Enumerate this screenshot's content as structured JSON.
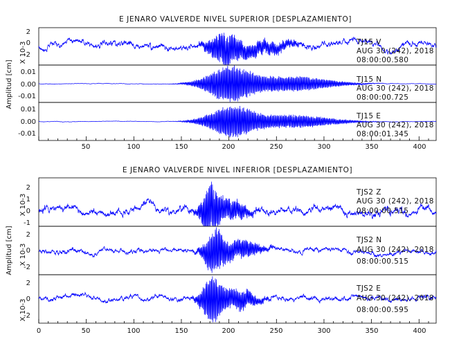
{
  "chart_data": [
    {
      "type": "line",
      "title": "E JENARO VALVERDE NIVEL SUPERIOR [DESPLAZAMIENTO]",
      "ylabel": "Amplitud [cm]",
      "xlim": [
        0,
        418
      ],
      "xticks": [
        "50",
        "100",
        "150",
        "200",
        "250",
        "300",
        "350",
        "400"
      ],
      "line_color": "#0000ff",
      "grid": false,
      "panels": [
        {
          "name": "TJ15  V",
          "date": "AUG 30 (242), 2018",
          "time": "08:00:00.580",
          "yunit": "X 10-3",
          "ylim": [
            -2.3,
            2.3
          ],
          "yticks": [
            "2",
            "0",
            "-2"
          ],
          "baseline": 0.3,
          "noise_amp": 0.55,
          "peak_amp": 1.9,
          "peak_time": 195,
          "peak_width": 18,
          "seed": 11
        },
        {
          "name": "TJ15  N",
          "date": "AUG 30 (242), 2018",
          "time": "08:00:00.725",
          "yunit": "",
          "ylim": [
            -0.015,
            0.015
          ],
          "yticks": [
            "0.01",
            "0.00",
            "-0.01"
          ],
          "baseline": 0,
          "noise_amp": 0.0003,
          "peak_amp": 0.014,
          "peak_time": 200,
          "peak_width": 28,
          "seed": 23
        },
        {
          "name": "TJ15  E",
          "date": "AUG 30 (242), 2018",
          "time": "08:00:01.345",
          "yunit": "",
          "ylim": [
            -0.015,
            0.015
          ],
          "yticks": [
            "0.01",
            "0.00",
            "-0.01"
          ],
          "baseline": 0,
          "noise_amp": 0.0003,
          "peak_amp": 0.012,
          "peak_time": 202,
          "peak_width": 28,
          "seed": 37
        }
      ]
    },
    {
      "type": "line",
      "title": "E JENARO VALVERDE NIVEL INFERIOR [DESPLAZAMIENTO]",
      "ylabel": "Amplitud [cm]",
      "xlim": [
        0,
        418
      ],
      "xticks": [
        "0",
        "50",
        "100",
        "150",
        "200",
        "250",
        "300",
        "350",
        "400"
      ],
      "line_color": "#0000ff",
      "grid": false,
      "panels": [
        {
          "name": "TJS2   Z",
          "date": "AUG 30 (242), 2018",
          "time": "08:00:00.515",
          "yunit": "X 10-3",
          "ylim": [
            -1.3,
            2.7
          ],
          "yticks": [
            "2",
            "1",
            "0",
            "-1"
          ],
          "baseline": 0,
          "noise_amp": 0.45,
          "peak_amp": 2.0,
          "peak_time": 180,
          "peak_width": 10,
          "seed": 51
        },
        {
          "name": "TJS2   N",
          "date": "AUG 30 (242), 2018",
          "time": "08:00:00.515",
          "yunit": "X 10-3",
          "ylim": [
            -3.0,
            3.0
          ],
          "yticks": [
            "2",
            "0",
            "-2"
          ],
          "baseline": 0,
          "noise_amp": 0.45,
          "peak_amp": 2.6,
          "peak_time": 185,
          "peak_width": 12,
          "seed": 67
        },
        {
          "name": "TJS2   E",
          "date": "AUG 30 (242), 2018",
          "time": "08:00:00.595",
          "yunit": "X 10-3",
          "ylim": [
            -3.0,
            3.0
          ],
          "yticks": [
            "2",
            "0",
            "-2"
          ],
          "baseline": 0,
          "noise_amp": 0.45,
          "peak_amp": 2.8,
          "peak_time": 182,
          "peak_width": 12,
          "seed": 83
        }
      ]
    }
  ]
}
